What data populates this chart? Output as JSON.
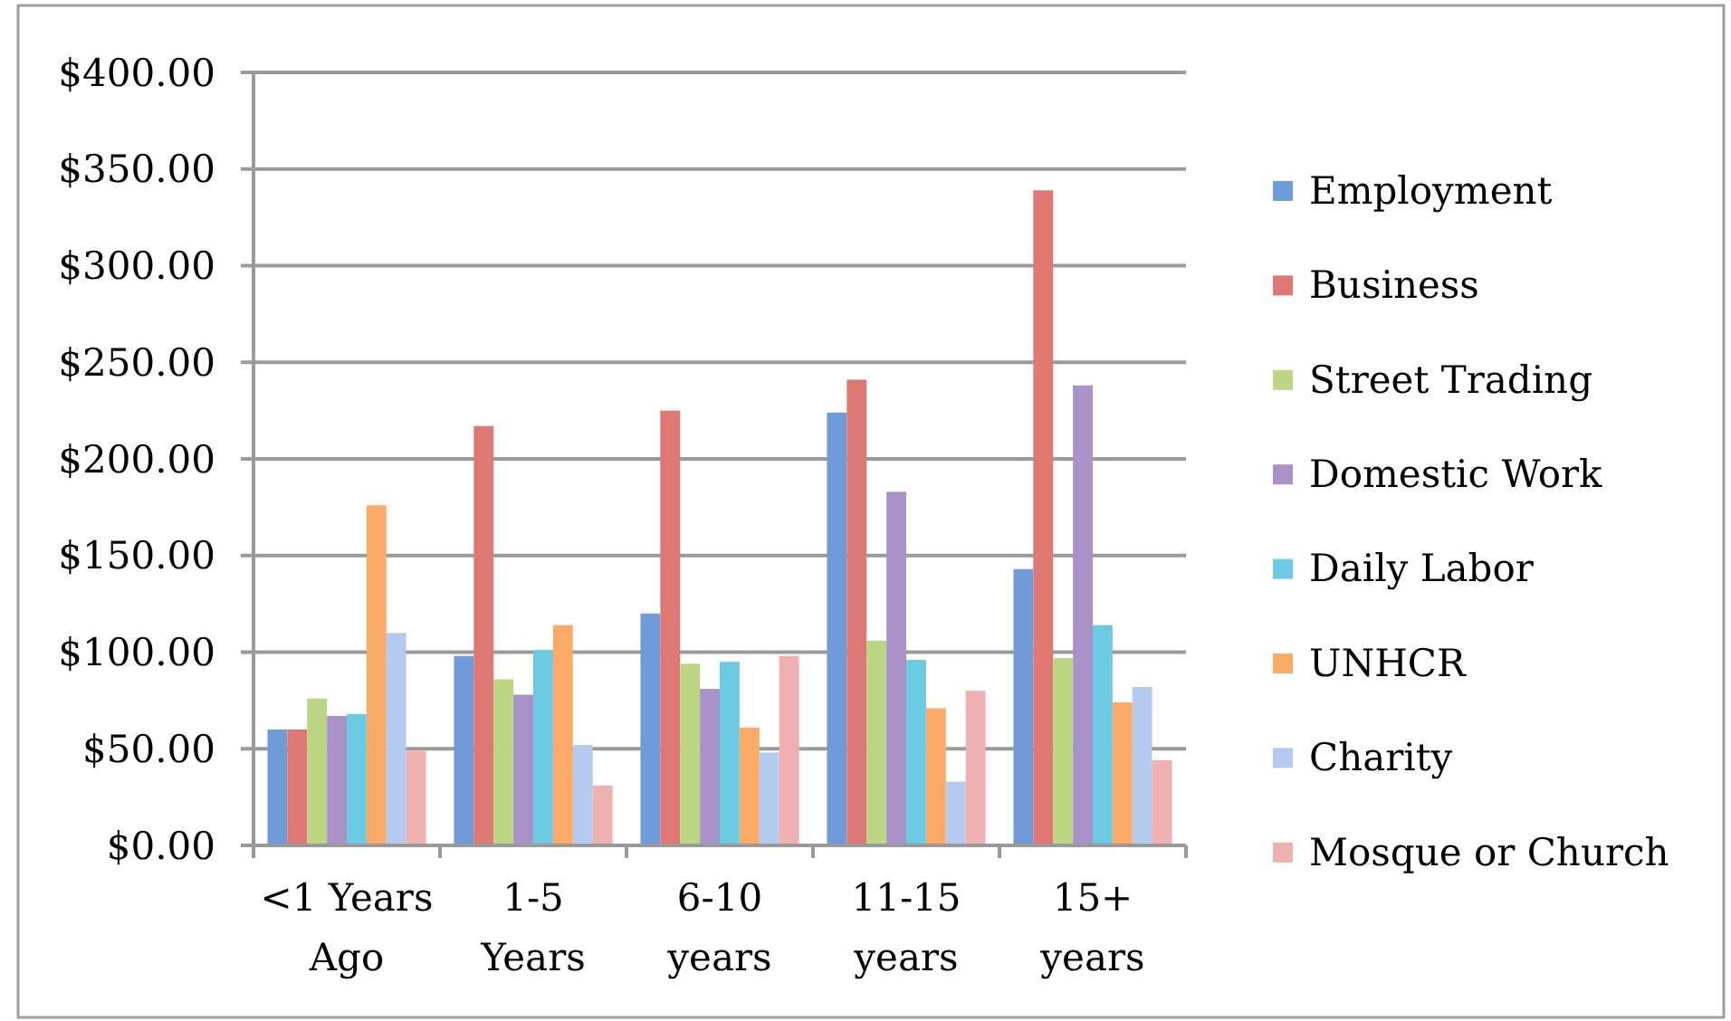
{
  "chart_data": {
    "type": "bar",
    "categories": [
      "<1 Years\nAgo",
      "1-5\nYears",
      "6-10\nyears",
      "11-15\nyears",
      "15+\nyears"
    ],
    "series": [
      {
        "name": "Employment",
        "color": "#6f9bd8",
        "values": [
          60,
          98,
          120,
          224,
          143
        ]
      },
      {
        "name": "Business",
        "color": "#de7875",
        "values": [
          60,
          217,
          225,
          241,
          339
        ]
      },
      {
        "name": "Street Trading",
        "color": "#bcd686",
        "values": [
          76,
          86,
          94,
          106,
          97
        ]
      },
      {
        "name": "Domestic Work",
        "color": "#a892c8",
        "values": [
          67,
          78,
          81,
          183,
          238
        ]
      },
      {
        "name": "Daily Labor",
        "color": "#6ccbe2",
        "values": [
          68,
          101,
          95,
          96,
          114
        ]
      },
      {
        "name": "UNHCR",
        "color": "#fbaa68",
        "values": [
          176,
          114,
          61,
          71,
          74
        ]
      },
      {
        "name": "Charity",
        "color": "#b4caee",
        "values": [
          110,
          52,
          48,
          33,
          82
        ]
      },
      {
        "name": "Mosque or Church",
        "color": "#efb0b0",
        "values": [
          49,
          31,
          98,
          80,
          44
        ]
      }
    ],
    "ylim": [
      0,
      400
    ],
    "yticks": [
      {
        "value": 0,
        "label": "$0.00"
      },
      {
        "value": 50,
        "label": "$50.00"
      },
      {
        "value": 100,
        "label": "$100.00"
      },
      {
        "value": 150,
        "label": "$150.00"
      },
      {
        "value": 200,
        "label": "$200.00"
      },
      {
        "value": 250,
        "label": "$250.00"
      },
      {
        "value": 300,
        "label": "$300.00"
      },
      {
        "value": 350,
        "label": "$350.00"
      },
      {
        "value": 400,
        "label": "$400.00"
      }
    ],
    "grid": "y",
    "legend": "right"
  }
}
